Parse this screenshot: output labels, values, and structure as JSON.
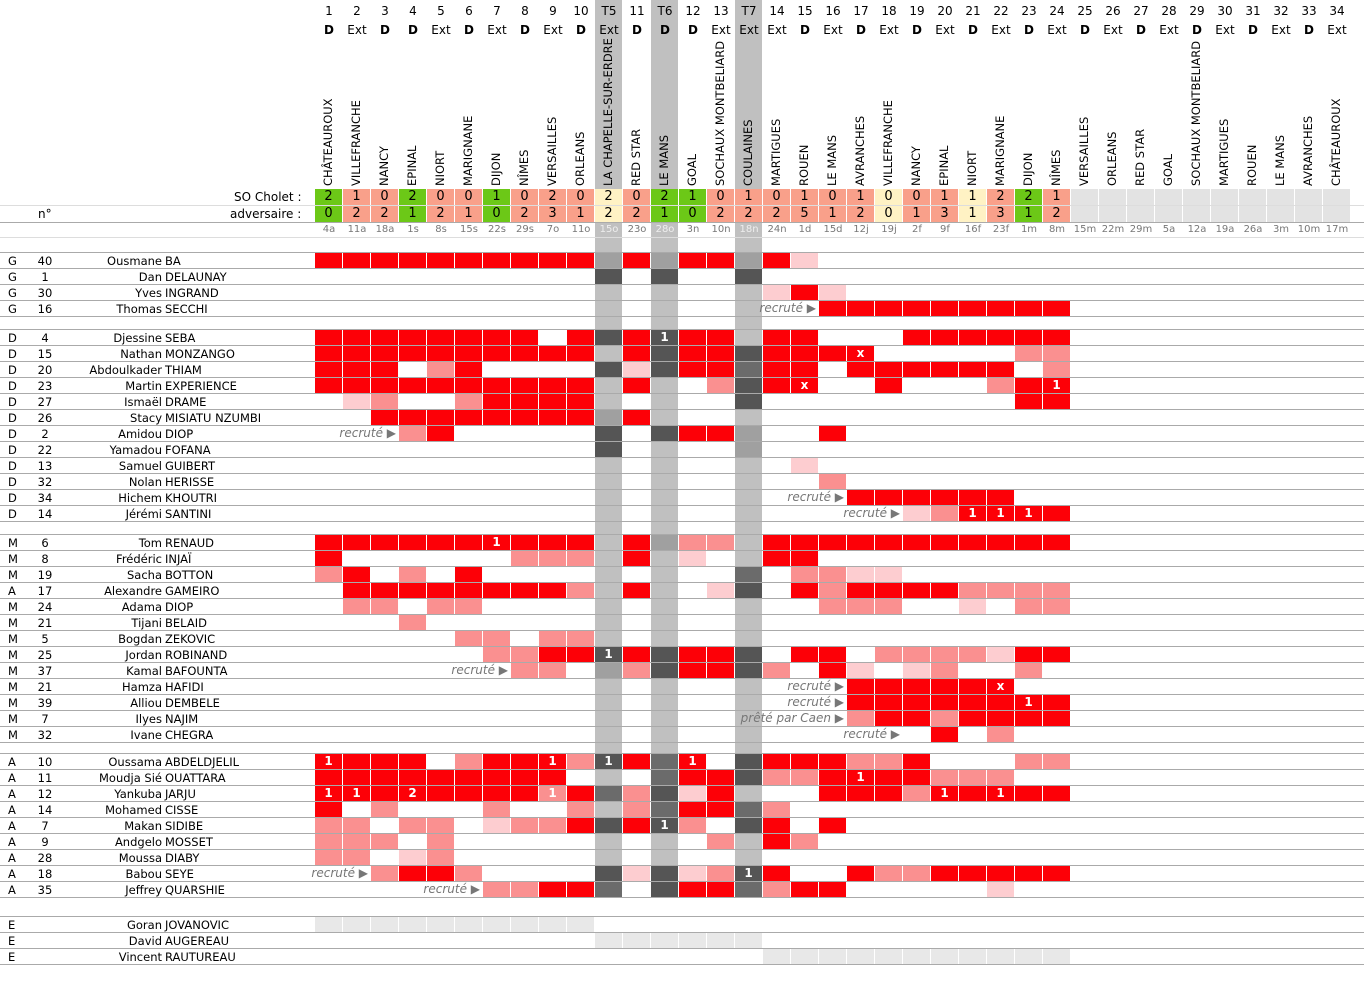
{
  "header": {
    "score_label": "SO Cholet :",
    "opp_label": "adversaire :",
    "num_label": "n°"
  },
  "colors": {
    "red": "#fd0007",
    "pink": "#fa9090",
    "light_pink": "#fdcdd0",
    "win": "#6cc817",
    "loss": "#f9a08a",
    "draw": "#fff2c4",
    "empty": "#e3e3e3",
    "cup": "#c0c0c0",
    "cup_dark": "#555555",
    "cup_mid": "#6b6b6b",
    "cup_light": "#a0a0a0",
    "staff": "#e8e8e8"
  },
  "columns": [
    {
      "num": "1",
      "loc": "D",
      "team": "CHÂTEAUROUX",
      "date": "4a",
      "us": "2",
      "them": "0"
    },
    {
      "num": "2",
      "loc": "Ext",
      "team": "VILLEFRANCHE",
      "date": "11a",
      "us": "1",
      "them": "2"
    },
    {
      "num": "3",
      "loc": "D",
      "team": "NANCY",
      "date": "18a",
      "us": "0",
      "them": "2"
    },
    {
      "num": "4",
      "loc": "D",
      "team": "EPINAL",
      "date": "1s",
      "us": "2",
      "them": "1"
    },
    {
      "num": "5",
      "loc": "Ext",
      "team": "NIORT",
      "date": "8s",
      "us": "0",
      "them": "2"
    },
    {
      "num": "6",
      "loc": "D",
      "team": "MARIGNANE",
      "date": "15s",
      "us": "0",
      "them": "1"
    },
    {
      "num": "7",
      "loc": "Ext",
      "team": "DIJON",
      "date": "22s",
      "us": "1",
      "them": "0"
    },
    {
      "num": "8",
      "loc": "D",
      "team": "NÎMES",
      "date": "29s",
      "us": "0",
      "them": "2"
    },
    {
      "num": "9",
      "loc": "Ext",
      "team": "VERSAILLES",
      "date": "7o",
      "us": "2",
      "them": "3"
    },
    {
      "num": "10",
      "loc": "D",
      "team": "ORLEANS",
      "date": "11o",
      "us": "0",
      "them": "1"
    },
    {
      "num": "T5",
      "loc": "Ext",
      "team": "LA CHAPELLE-SUR-ERDRE",
      "date": "15o",
      "us": "2",
      "them": "2",
      "cup": true
    },
    {
      "num": "11",
      "loc": "D",
      "team": "RED STAR",
      "date": "23o",
      "us": "0",
      "them": "2"
    },
    {
      "num": "T6",
      "loc": "D",
      "team": "LE MANS",
      "date": "28o",
      "us": "2",
      "them": "1",
      "cup": true
    },
    {
      "num": "12",
      "loc": "D",
      "team": "GOAL",
      "date": "3n",
      "us": "1",
      "them": "0"
    },
    {
      "num": "13",
      "loc": "Ext",
      "team": "SOCHAUX MONTBELIARD",
      "date": "10n",
      "us": "0",
      "them": "2"
    },
    {
      "num": "T7",
      "loc": "Ext",
      "team": "COULAINES",
      "date": "18n",
      "us": "1",
      "them": "2",
      "cup": true
    },
    {
      "num": "14",
      "loc": "Ext",
      "team": "MARTIGUES",
      "date": "24n",
      "us": "0",
      "them": "2"
    },
    {
      "num": "15",
      "loc": "D",
      "team": "ROUEN",
      "date": "1d",
      "us": "1",
      "them": "5"
    },
    {
      "num": "16",
      "loc": "Ext",
      "team": "LE MANS",
      "date": "15d",
      "us": "0",
      "them": "1"
    },
    {
      "num": "17",
      "loc": "D",
      "team": "AVRANCHES",
      "date": "12j",
      "us": "1",
      "them": "2"
    },
    {
      "num": "18",
      "loc": "Ext",
      "team": "VILLEFRANCHE",
      "date": "19j",
      "us": "0",
      "them": "0"
    },
    {
      "num": "19",
      "loc": "D",
      "team": "NANCY",
      "date": "2f",
      "us": "0",
      "them": "1"
    },
    {
      "num": "20",
      "loc": "Ext",
      "team": "EPINAL",
      "date": "9f",
      "us": "1",
      "them": "3"
    },
    {
      "num": "21",
      "loc": "D",
      "team": "NIORT",
      "date": "16f",
      "us": "1",
      "them": "1"
    },
    {
      "num": "22",
      "loc": "Ext",
      "team": "MARIGNANE",
      "date": "23f",
      "us": "2",
      "them": "3"
    },
    {
      "num": "23",
      "loc": "D",
      "team": "DIJON",
      "date": "1m",
      "us": "2",
      "them": "1"
    },
    {
      "num": "24",
      "loc": "Ext",
      "team": "NÎMES",
      "date": "8m",
      "us": "1",
      "them": "2"
    },
    {
      "num": "25",
      "loc": "D",
      "team": "VERSAILLES",
      "date": "15m",
      "us": "",
      "them": ""
    },
    {
      "num": "26",
      "loc": "Ext",
      "team": "ORLEANS",
      "date": "22m",
      "us": "",
      "them": ""
    },
    {
      "num": "27",
      "loc": "D",
      "team": "RED STAR",
      "date": "29m",
      "us": "",
      "them": ""
    },
    {
      "num": "28",
      "loc": "Ext",
      "team": "GOAL",
      "date": "5a",
      "us": "",
      "them": ""
    },
    {
      "num": "29",
      "loc": "D",
      "team": "SOCHAUX MONTBELIARD",
      "date": "12a",
      "us": "",
      "them": ""
    },
    {
      "num": "30",
      "loc": "Ext",
      "team": "MARTIGUES",
      "date": "19a",
      "us": "",
      "them": ""
    },
    {
      "num": "31",
      "loc": "D",
      "team": "ROUEN",
      "date": "26a",
      "us": "",
      "them": ""
    },
    {
      "num": "32",
      "loc": "Ext",
      "team": "LE MANS",
      "date": "3m",
      "us": "",
      "them": ""
    },
    {
      "num": "33",
      "loc": "D",
      "team": "AVRANCHES",
      "date": "10m",
      "us": "",
      "them": ""
    },
    {
      "num": "34",
      "loc": "Ext",
      "team": "CHÂTEAUROUX",
      "date": "17m",
      "us": "",
      "them": ""
    }
  ],
  "groups": [
    {
      "rows": [
        {
          "pos": "G",
          "num": "40",
          "first": "Ousmane",
          "last": "BA",
          "cells": "RRRRRRRRRRMRMRRMRl"
        },
        {
          "pos": "G",
          "num": "1",
          "first": "Dan",
          "last": "DELAUNAY",
          "cells": "..........D.D..D"
        },
        {
          "pos": "G",
          "num": "30",
          "first": "Yves",
          "last": "INGRAND",
          "cells": "................lRl"
        },
        {
          "pos": "G",
          "num": "16",
          "first": "Thomas",
          "last": "SECCHI",
          "cells": "..................RRRRRRRRR",
          "note": "recruté ▶",
          "note_col": 18
        }
      ]
    },
    {
      "rows": [
        {
          "pos": "D",
          "num": "4",
          "first": "Djessine",
          "last": "SEBA",
          "cells": "RRRRRRRR.RDRaRR.RR...RRRRRR"
        },
        {
          "pos": "D",
          "num": "15",
          "first": "Nathan",
          "last": "MONZANGO",
          "cells": "RRRRRRRRRR.RDRRDRRRx.....pp"
        },
        {
          "pos": "D",
          "num": "20",
          "first": "Abdoulkader",
          "last": "THIAM",
          "cells": "RRR.pR....DlDRRGRR.RRRRRR.p"
        },
        {
          "pos": "D",
          "num": "23",
          "first": "Martin",
          "last": "EXPERIENCE",
          "cells": "RRRRRRRRRR.R..pDRx..R...pR1"
        },
        {
          "pos": "D",
          "num": "27",
          "first": "Ismaël",
          "last": "DRAME",
          "cells": ".lp..pRRRR.....D.........RR"
        },
        {
          "pos": "D",
          "num": "26",
          "first": "Stacy",
          "last": "MISIATU NZUMBI",
          "cells": "..RRRRRRRRMR"
        },
        {
          "pos": "D",
          "num": "2",
          "first": "Amidou",
          "last": "DIOP",
          "cells": "...pR.....D.DRRM..R",
          "note": "recruté ▶",
          "note_col": 3
        },
        {
          "pos": "D",
          "num": "22",
          "first": "Yamadou",
          "last": "FOFANA",
          "cells": "..........D....M"
        },
        {
          "pos": "D",
          "num": "13",
          "first": "Samuel",
          "last": "GUIBERT",
          "cells": ".................l"
        },
        {
          "pos": "D",
          "num": "32",
          "first": "Nolan",
          "last": "HERISSE",
          "cells": "..................p"
        },
        {
          "pos": "D",
          "num": "34",
          "first": "Hichem",
          "last": "KHOUTRI",
          "cells": "...................RRRRRR",
          "note": "recruté ▶",
          "note_col": 19
        },
        {
          "pos": "D",
          "num": "14",
          "first": "Jérémi",
          "last": "SANTINI",
          "cells": ".....................lp111R",
          "note": "recruté ▶",
          "note_col": 21
        }
      ]
    },
    {
      "rows": [
        {
          "pos": "M",
          "num": "6",
          "first": "Tom",
          "last": "RENAUD",
          "cells": "RRRRRR1RRR.RMpp.RRRRRRRRRRR"
        },
        {
          "pos": "M",
          "num": "8",
          "first": "Frédéric",
          "last": "INJAÏ",
          "cells": "R......ppp.R.l..RR"
        },
        {
          "pos": "M",
          "num": "19",
          "first": "Sacha",
          "last": "BOTTON",
          "cells": "pR.p.R.........G.ppll"
        },
        {
          "pos": "A",
          "num": "17",
          "first": "Alexandre",
          "last": "GAMEIRO",
          "cells": ".RRRRRRRRp.R..lD.RpRRRRpppp"
        },
        {
          "pos": "M",
          "num": "24",
          "first": "Adama",
          "last": "DIOP",
          "cells": ".pp.pp............ppp..l.pp"
        },
        {
          "pos": "M",
          "num": "21",
          "first": "Tijani",
          "last": "BELAID",
          "cells": "...p"
        },
        {
          "pos": "M",
          "num": "5",
          "first": "Bogdan",
          "last": "ZEKOVIC",
          "cells": ".....pp.pp"
        },
        {
          "pos": "M",
          "num": "25",
          "first": "Jordan",
          "last": "ROBINAND",
          "cells": "......ppRRaRDRRD.RR.pppplRR"
        },
        {
          "pos": "M",
          "num": "37",
          "first": "Kamal",
          "last": "BAFOUNTA",
          "cells": ".......pp.MpDRRDp.Rl.lp..p",
          "note": "recruté ▶",
          "note_col": 7
        },
        {
          "pos": "M",
          "num": "21",
          "first": "Hamza",
          "last": "HAFIDI",
          "cells": "...................RRRRRx",
          "note": "recruté ▶",
          "note_col": 19
        },
        {
          "pos": "M",
          "num": "39",
          "first": "Alliou",
          "last": "DEMBELE",
          "cells": "...................RRRRRR1R",
          "note": "recruté ▶",
          "note_col": 19
        },
        {
          "pos": "M",
          "num": "7",
          "first": "Ilyes",
          "last": "NAJIM",
          "cells": "...................pRRpRRRR",
          "note": "prêté par Caen ▶",
          "note_col": 19
        },
        {
          "pos": "M",
          "num": "32",
          "first": "Ivane",
          "last": "CHEGRA",
          "cells": "......................R.p",
          "note": "recruté ▶",
          "note_col": 21
        }
      ]
    },
    {
      "rows": [
        {
          "pos": "A",
          "num": "10",
          "first": "Oussama",
          "last": "ABDELDJELIL",
          "cells": "1RRR.pRR1paRG1.DRRRppR...pp"
        },
        {
          "pos": "A",
          "num": "11",
          "first": "Moudja Sié",
          "last": "OUATTARA",
          "cells": "RRRRRRRRR...GRRDppR1RRppp"
        },
        {
          "pos": "A",
          "num": "12",
          "first": "Yankuba",
          "last": "JARJU",
          "cells": "11R2RRRRqRGpDlR...RRRp1R1RR"
        },
        {
          "pos": "A",
          "num": "14",
          "first": "Mohamed",
          "last": "CISSE",
          "cells": "R.p...p..p.pGRRGp"
        },
        {
          "pos": "A",
          "num": "7",
          "first": "Makan",
          "last": "SIDIBE",
          "cells": "pp.pp.lppRDRap.DR.R"
        },
        {
          "pos": "A",
          "num": "9",
          "first": "Andgelo",
          "last": "MOSSET",
          "cells": "ppp.p.........p.Rp"
        },
        {
          "pos": "A",
          "num": "28",
          "first": "Moussa",
          "last": "DIABY",
          "cells": "pp.lp"
        },
        {
          "pos": "A",
          "num": "18",
          "first": "Babou",
          "last": "SEYE",
          "cells": "..pRRp....DlDlpaR..RppRRRRR",
          "note": "recruté ▶",
          "note_col": 2
        },
        {
          "pos": "A",
          "num": "35",
          "first": "Jeffrey",
          "last": "QUARSHIE",
          "cells": "......ppRRG.DRRGpRR.....l",
          "note": "recruté ▶",
          "note_col": 6
        }
      ]
    },
    {
      "staff": true,
      "rows": [
        {
          "pos": "E",
          "num": "",
          "first": "Goran",
          "last": "JOVANOVIC",
          "cells": "eeeeeeeeee"
        },
        {
          "pos": "E",
          "num": "",
          "first": "David",
          "last": "AUGEREAU",
          "cells": "..........eeeeee"
        },
        {
          "pos": "E",
          "num": "",
          "first": "Vincent",
          "last": "RAUTUREAU",
          "cells": "................eeeeeeeeeee"
        }
      ]
    }
  ]
}
